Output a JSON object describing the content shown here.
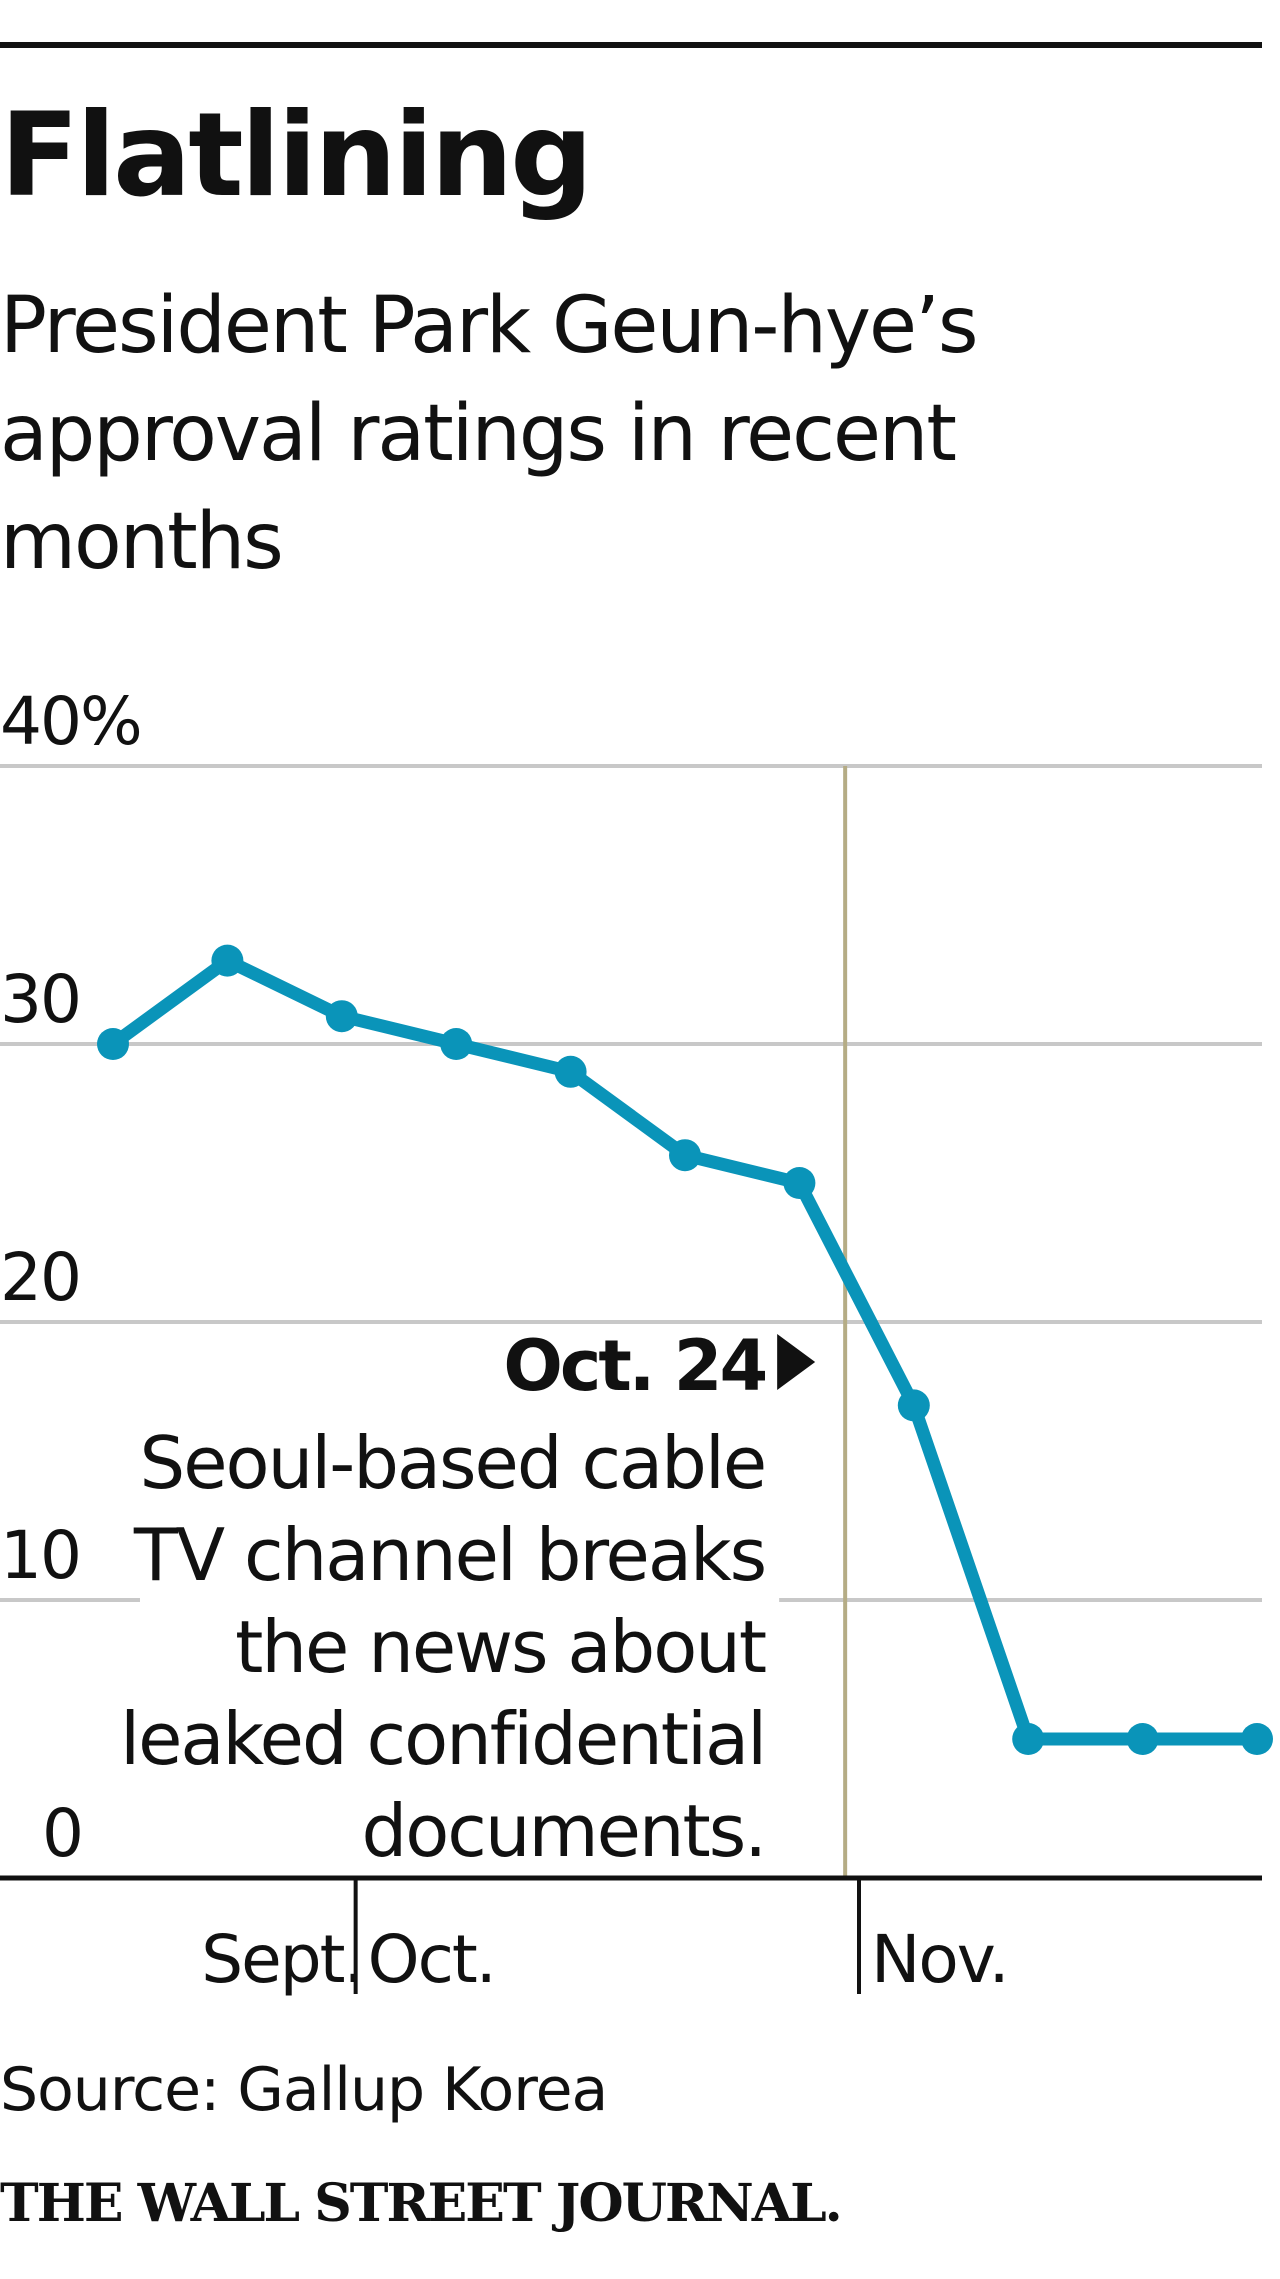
{
  "header": {
    "title": "Flatlining",
    "subtitle": "President Park Geun-hye’s approval ratings in recent months"
  },
  "chart_data": {
    "type": "line",
    "title": "Flatlining",
    "subtitle": "President Park Geun-hye’s approval ratings in recent months",
    "xlabel": "",
    "ylabel": "",
    "ylim": [
      0,
      40
    ],
    "y_ticks": [
      0,
      10,
      20,
      30,
      40
    ],
    "y_tick_labels": [
      "0",
      "10",
      "20",
      "30",
      "40%"
    ],
    "grid": true,
    "x_ticks": [
      {
        "label": "Sept.",
        "tick": false,
        "week": 1.1
      },
      {
        "label": "Oct.",
        "tick": true,
        "week": 3.1
      },
      {
        "label": "Nov.",
        "tick": true,
        "week": 7.5
      }
    ],
    "x_range_weeks": [
      -1,
      9.95
    ],
    "series": [
      {
        "name": "Approval rating",
        "color": "#0a94b9",
        "points": [
          {
            "week": 0,
            "value": 30
          },
          {
            "week": 1,
            "value": 33
          },
          {
            "week": 2,
            "value": 31
          },
          {
            "week": 3,
            "value": 30
          },
          {
            "week": 4,
            "value": 29
          },
          {
            "week": 5,
            "value": 26
          },
          {
            "week": 6,
            "value": 25
          },
          {
            "week": 7,
            "value": 17
          },
          {
            "week": 8,
            "value": 5
          },
          {
            "week": 9,
            "value": 5
          },
          {
            "week": 10,
            "value": 5
          }
        ]
      }
    ],
    "annotation": {
      "week": 6.4,
      "label": "Oct. 24",
      "text_lines": [
        "Seoul-based cable",
        "TV channel breaks",
        "the news about",
        "leaked confidential",
        "documents."
      ],
      "line_color": "#b5ac85"
    },
    "gridline_color": "#c8c8c8",
    "axis_color": "#111111"
  },
  "footer": {
    "source": "Source: Gallup Korea",
    "logo_text": "THE WALL STREET JOURNAL."
  }
}
